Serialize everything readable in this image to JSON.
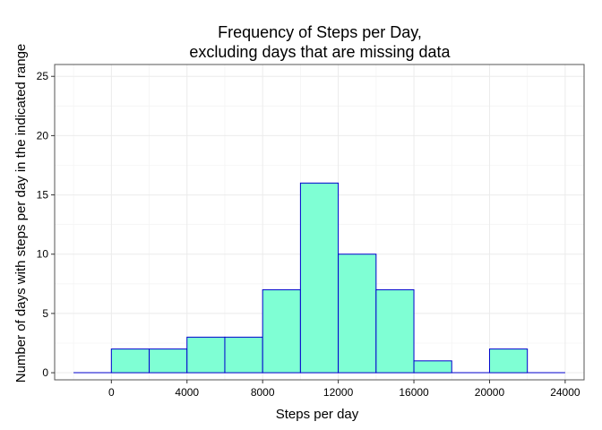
{
  "chart_data": {
    "type": "bar",
    "title_lines": [
      "Frequency of Steps per Day,",
      "excluding days that are missing data"
    ],
    "xlabel": "Steps per day",
    "ylabel": "Number of days with steps per day in the indicated range",
    "xlim": [
      -3000,
      25000
    ],
    "ylim": [
      -0.6,
      26
    ],
    "x_ticks": [
      0,
      4000,
      8000,
      12000,
      16000,
      20000,
      24000
    ],
    "y_ticks": [
      0,
      5,
      10,
      15,
      20,
      25
    ],
    "bin_width": 2000,
    "bins": [
      {
        "start": -2000,
        "end": 0,
        "count": 0
      },
      {
        "start": 0,
        "end": 2000,
        "count": 2
      },
      {
        "start": 2000,
        "end": 4000,
        "count": 2
      },
      {
        "start": 4000,
        "end": 6000,
        "count": 3
      },
      {
        "start": 6000,
        "end": 8000,
        "count": 3
      },
      {
        "start": 8000,
        "end": 10000,
        "count": 7
      },
      {
        "start": 10000,
        "end": 12000,
        "count": 16
      },
      {
        "start": 12000,
        "end": 14000,
        "count": 10
      },
      {
        "start": 14000,
        "end": 16000,
        "count": 7
      },
      {
        "start": 16000,
        "end": 18000,
        "count": 1
      },
      {
        "start": 18000,
        "end": 20000,
        "count": 0
      },
      {
        "start": 20000,
        "end": 22000,
        "count": 2
      },
      {
        "start": 22000,
        "end": 24000,
        "count": 0
      }
    ],
    "grid": true,
    "bar_fill": "#7fffd4",
    "bar_stroke": "#0000cd",
    "grid_color": "#ebebeb",
    "panel_border": "#555555"
  }
}
